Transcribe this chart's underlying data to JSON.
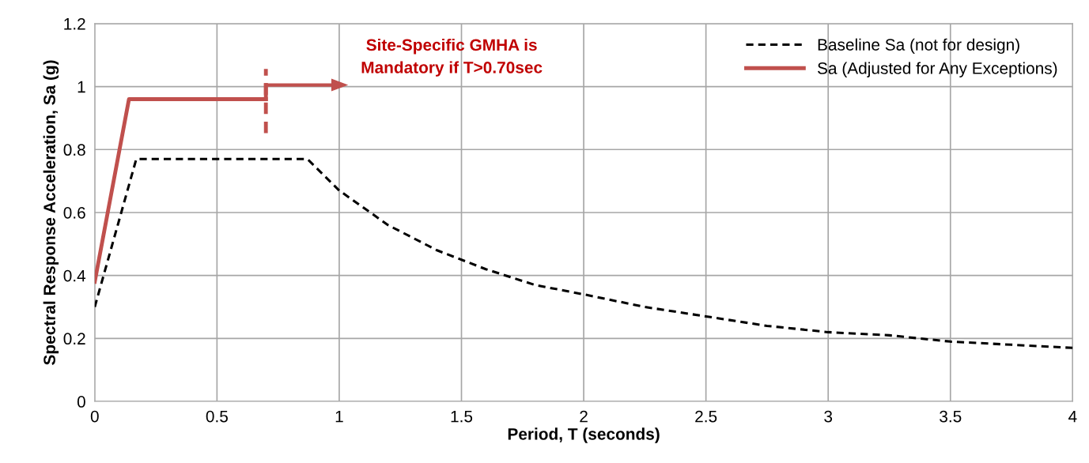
{
  "chart_data": {
    "type": "line",
    "xlabel": "Period, T (seconds)",
    "ylabel": "Spectral Response Acceleration, Sa (g)",
    "xlim": [
      0,
      4
    ],
    "xticks": [
      0,
      0.5,
      1,
      1.5,
      2,
      2.5,
      3,
      3.5,
      4
    ],
    "ylim": [
      0,
      1.2
    ],
    "yticks": [
      0,
      0.2,
      0.4,
      0.6,
      0.8,
      1,
      1.2
    ],
    "grid": true,
    "legend": "top right",
    "series": [
      {
        "name": "Baseline Sa (not for design)",
        "color": "#000000",
        "line_style": "dashed",
        "x": [
          0,
          0.17,
          0.87,
          1.0,
          1.2,
          1.4,
          1.6,
          1.8,
          2,
          2.25,
          2.5,
          2.75,
          3,
          3.25,
          3.5,
          3.75,
          4
        ],
        "values": [
          0.3,
          0.77,
          0.77,
          0.67,
          0.56,
          0.48,
          0.42,
          0.37,
          0.34,
          0.3,
          0.27,
          0.24,
          0.22,
          0.21,
          0.19,
          0.18,
          0.17
        ]
      },
      {
        "name": "Sa (Adjusted for Any Exceptions)",
        "color": "#c0504d",
        "line_style": "solid",
        "x": [
          0,
          0.14,
          0.7
        ],
        "values": [
          0.38,
          0.96,
          0.96
        ]
      }
    ],
    "ref_lines": [
      {
        "axis": "x",
        "value": 0.7,
        "color": "#c0504d",
        "line_style": "dashed"
      }
    ],
    "annotations": [
      "Site-Specific GMHA is\nMandatory if T>0.70sec"
    ]
  }
}
